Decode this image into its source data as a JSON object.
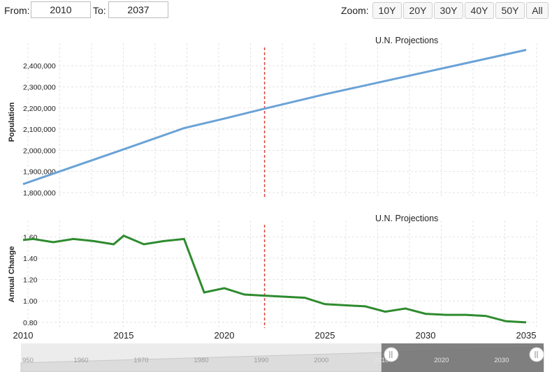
{
  "controls": {
    "from_label": "From:",
    "from_value": "2010",
    "to_label": "To:",
    "to_value": "2037",
    "zoom_label": "Zoom:",
    "zoom_buttons": [
      "10Y",
      "20Y",
      "30Y",
      "40Y",
      "50Y",
      "All"
    ]
  },
  "chart_data": [
    {
      "type": "line",
      "title": "U.N. Projections",
      "ylabel": "Population",
      "ylim": [
        1780000,
        2480000
      ],
      "yticks": [
        1800000,
        1900000,
        2000000,
        2100000,
        2200000,
        2300000,
        2400000
      ],
      "ytick_labels": [
        "1,800,000",
        "1,900,000",
        "2,000,000",
        "2,100,000",
        "2,200,000",
        "2,300,000",
        "2,400,000"
      ],
      "series": [
        {
          "color": "#6aa2d6",
          "x": [
            2010,
            2015,
            2018,
            2020,
            2022,
            2025,
            2030,
            2035
          ],
          "y": [
            1840000,
            2005000,
            2105000,
            2150000,
            2197000,
            2265000,
            2370000,
            2475000
          ]
        }
      ],
      "marker_x": 2022,
      "grid": true
    },
    {
      "type": "line",
      "title": "U.N. Projections",
      "ylabel": "Annual Change",
      "ylim": [
        0.76,
        1.7
      ],
      "yticks": [
        0.8,
        1.0,
        1.2,
        1.4,
        1.6
      ],
      "ytick_labels": [
        "0.80",
        "1.00",
        "1.20",
        "1.40",
        "1.60"
      ],
      "series": [
        {
          "color": "#2e8b2e",
          "x": [
            2010,
            2010.5,
            2011.5,
            2012.5,
            2013.5,
            2014.5,
            2015,
            2016,
            2017,
            2018,
            2019,
            2020,
            2021,
            2022,
            2023,
            2024,
            2025,
            2026,
            2027,
            2028,
            2029,
            2030,
            2031,
            2032,
            2033,
            2034,
            2035
          ],
          "y": [
            1.57,
            1.58,
            1.55,
            1.58,
            1.56,
            1.53,
            1.61,
            1.53,
            1.56,
            1.58,
            1.08,
            1.12,
            1.06,
            1.05,
            1.04,
            1.03,
            0.97,
            0.96,
            0.95,
            0.9,
            0.93,
            0.88,
            0.87,
            0.87,
            0.86,
            0.81,
            0.8
          ]
        }
      ],
      "marker_x": 2022,
      "grid": true
    }
  ],
  "x_axis": {
    "range": [
      2010,
      2035
    ],
    "ticks": [
      2010,
      2015,
      2020,
      2025,
      2030,
      2035
    ],
    "tick_labels": [
      "2010",
      "2015",
      "2020",
      "2025",
      "2030",
      "2035"
    ]
  },
  "navigator": {
    "range": [
      1950,
      2037
    ],
    "labels": [
      "950",
      "1960",
      "1970",
      "1980",
      "1990",
      "2000",
      "2010",
      "2020",
      "2030"
    ],
    "label_years": [
      1950,
      1960,
      1970,
      1980,
      1990,
      2000,
      2010,
      2020,
      2030
    ],
    "selected": [
      2010,
      2037
    ]
  },
  "colors": {
    "population_line": "#6aa2d6",
    "annual_change_line": "#2e8b2e",
    "marker_line": "#d9433a"
  }
}
